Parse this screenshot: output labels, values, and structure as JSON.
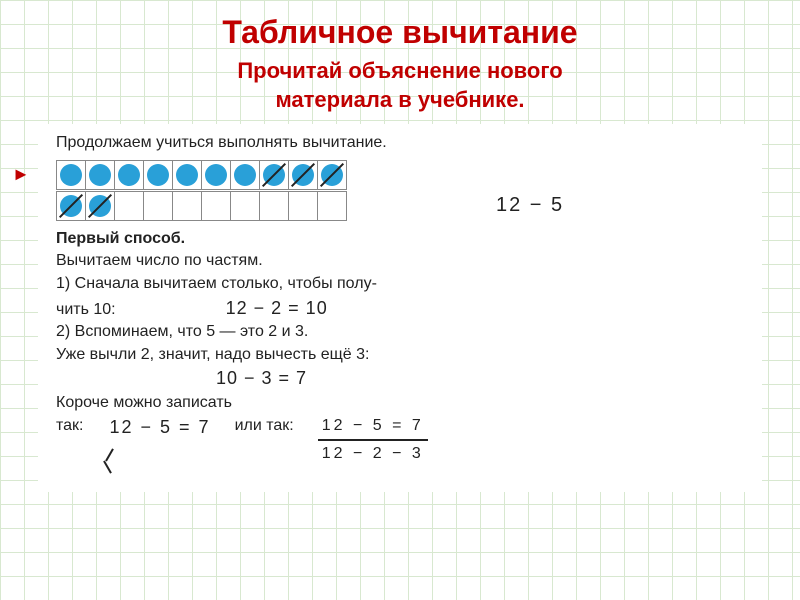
{
  "title": "Табличное вычитание",
  "subtitle_line1": "Прочитай  объяснение  нового",
  "subtitle_line2": "материала в  учебнике.",
  "intro": "Продолжаем учиться выполнять вычитание.",
  "grid_row1": {
    "cells": 10,
    "filled": 10,
    "slashed_from": 7
  },
  "grid_row2": {
    "cells": 10,
    "filled": 2,
    "slashed_from": 0
  },
  "expr_main": "12 − 5",
  "method_heading": "Первый способ.",
  "line1": "Вычитаем число по частям.",
  "line2a": "1) Сначала вычитаем столько, чтобы полу-",
  "line2b": "чить 10:",
  "eq1": "12 − 2 = 10",
  "line3": "2) Вспоминаем, что 5 — это 2 и 3.",
  "line4": "Уже вычли 2, значит, надо вычесть ещё 3:",
  "eq2": "10 − 3 = 7",
  "line5a": "Короче можно записать",
  "line5b": "так:",
  "final_eq1": "12 − 5 = 7",
  "or_text": "или так:",
  "frac_top": "12 − 5 = 7",
  "frac_bot": "12 − 2 − 3",
  "colors": {
    "heading": "#c00000",
    "dot": "#29a0d8",
    "grid": "#d8e8d0",
    "text": "#222222",
    "bg": "#ffffff"
  }
}
